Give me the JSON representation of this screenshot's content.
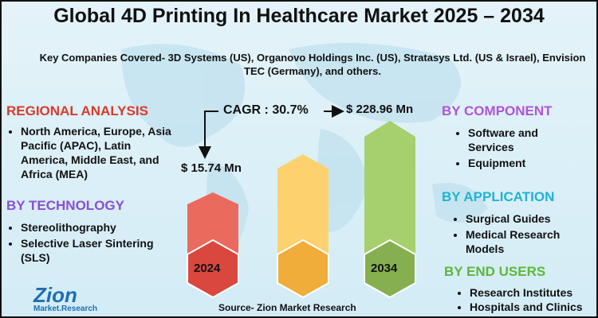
{
  "title": "Global 4D Printing In Healthcare Market 2025 – 2034",
  "subtitle": "Key Companies Covered- 3D Systems (US), Organovo Holdings Inc. (US), Stratasys Ltd. (US & Israel), Envision TEC (Germany), and others.",
  "sections": [
    {
      "heading": "REGIONAL ANALYSIS",
      "items": [
        "North America, Europe, Asia Pacific (APAC), Latin America, Middle East, and Africa (MEA)"
      ]
    },
    {
      "heading": "BY TECHNOLOGY",
      "items": [
        "Stereolithography",
        "Selective Laser Sintering (SLS)"
      ]
    },
    {
      "heading": "BY COMPONENT",
      "items": [
        "Software and Services",
        "Equipment"
      ]
    },
    {
      "heading": "BY APPLICATION",
      "items": [
        "Surgical Guides",
        "Medical Research Models"
      ]
    },
    {
      "heading": "BY END USERS",
      "items": [
        "Research Institutes",
        "Hospitals and Clinics"
      ]
    }
  ],
  "center": {
    "cagr": "CAGR : 30.7%",
    "start_value": "$ 15.74 Mn",
    "end_value": "$ 228.96 Mn",
    "start_year": "2024",
    "end_year": "2034"
  },
  "logo": {
    "name": "Zion",
    "tagline": "Market.Research"
  },
  "source": "Source- Zion Market Research"
}
